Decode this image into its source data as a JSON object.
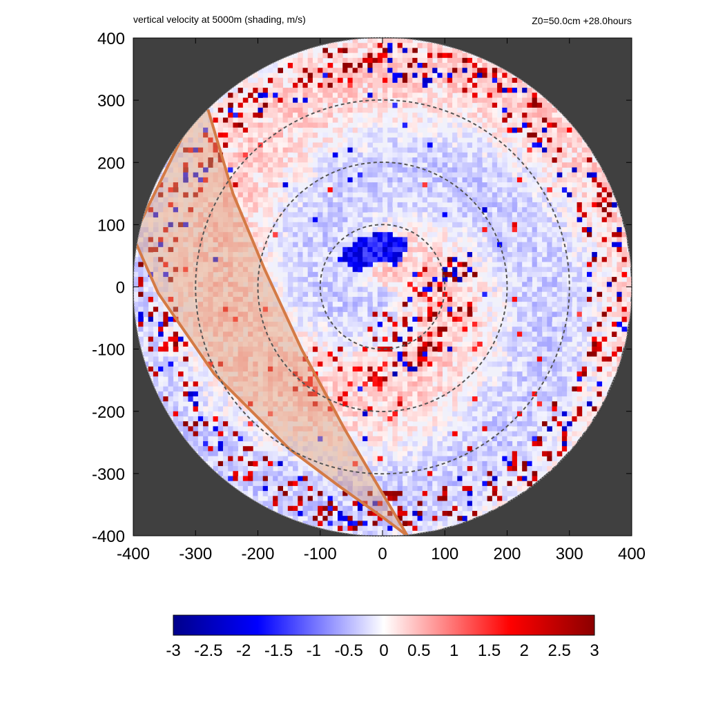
{
  "title_left": "vertical velocity at 5000m (shading, m/s)",
  "title_right": "Z0=50.0cm  +28.0hours",
  "colors": {
    "background_outside_domain": "#404040",
    "negative_extreme": "#00008b",
    "negative_mid": "#0000ff",
    "zero": "#ffffff",
    "positive_mid": "#ff0000",
    "positive_extreme": "#8b0000",
    "band_fill": "#d9a07a",
    "band_edge": "#d47a45",
    "ring_color": "#555555"
  },
  "chart_data": {
    "type": "heatmap",
    "title": "vertical velocity at 5000m (shading, m/s)",
    "annotation": "Z0=50.0cm  +28.0hours",
    "xlim": [
      -400,
      400
    ],
    "ylim": [
      -400,
      400
    ],
    "x_ticks": [
      "-400",
      "-300",
      "-200",
      "-100",
      "0",
      "100",
      "200",
      "300",
      "400"
    ],
    "y_ticks": [
      "400",
      "300",
      "200",
      "100",
      "0",
      "-100",
      "-200",
      "-300",
      "-400"
    ],
    "domain_radius": 400,
    "dashed_ring_radii": [
      100,
      200,
      300
    ],
    "colorbar": {
      "min": -3,
      "max": 3,
      "tick_labels": [
        "-3",
        "-2.5",
        "-2",
        "-1.5",
        "-1",
        "-0.5",
        "0",
        "0.5",
        "1",
        "1.5",
        "2",
        "2.5",
        "3"
      ]
    },
    "shaded_band": {
      "inner_edge": [
        [
          -280,
          285
        ],
        [
          -240,
          150
        ],
        [
          -190,
          30
        ],
        [
          -130,
          -100
        ],
        [
          -60,
          -230
        ],
        [
          40,
          -400
        ]
      ],
      "outer_edge": [
        [
          -300,
          285
        ],
        [
          -400,
          80
        ],
        [
          -360,
          -10
        ],
        [
          -270,
          -140
        ],
        [
          -150,
          -260
        ],
        [
          -70,
          -320
        ],
        [
          0,
          -370
        ],
        [
          40,
          -400
        ]
      ]
    },
    "features": {
      "eye_negative_arc_center": [
        10,
        45
      ],
      "strong_updraft_regions": [
        [
          50,
          -60
        ],
        [
          80,
          -20
        ],
        [
          30,
          -100
        ],
        [
          0,
          -120
        ],
        [
          -60,
          -120
        ]
      ],
      "outer_rainband_radius": 370
    }
  }
}
